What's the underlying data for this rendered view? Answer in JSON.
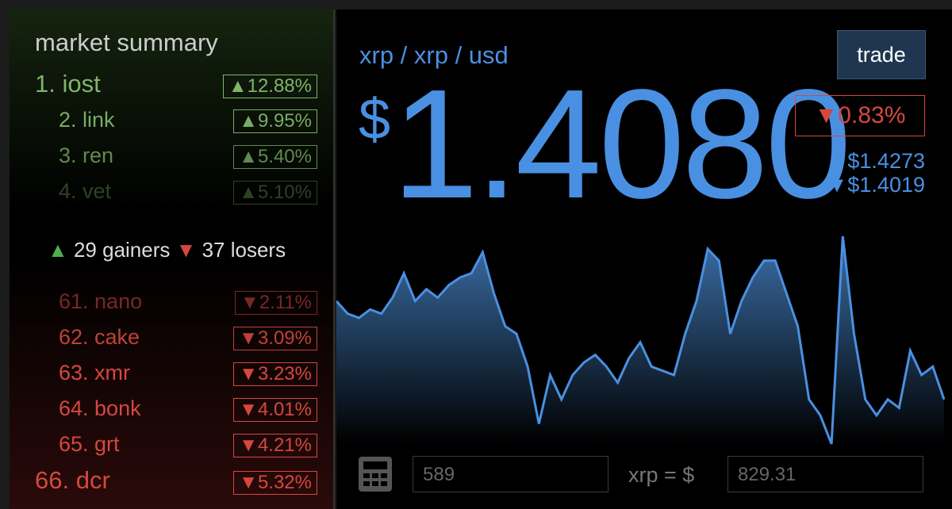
{
  "sidebar": {
    "title": "market summary",
    "gainers": [
      {
        "rank": "1. iost",
        "change": "▲12.88%"
      },
      {
        "rank": "2. link",
        "change": "▲9.95%"
      },
      {
        "rank": "3. ren",
        "change": "▲5.40%"
      },
      {
        "rank": "4. vet",
        "change": "▲5.10%"
      }
    ],
    "summary": {
      "gainers": "29 gainers",
      "losers": "37 losers"
    },
    "losers": [
      {
        "rank": "61. nano",
        "change": "▼2.11%"
      },
      {
        "rank": "62. cake",
        "change": "▼3.09%"
      },
      {
        "rank": "63. xmr",
        "change": "▼3.23%"
      },
      {
        "rank": "64. bonk",
        "change": "▼4.01%"
      },
      {
        "rank": "65. grt",
        "change": "▼4.21%"
      },
      {
        "rank": "66. dcr",
        "change": "▼5.32%"
      }
    ]
  },
  "ticker": {
    "pair": "xrp / xrp / usd",
    "trade": "trade",
    "currency": "$",
    "price": "1.4080",
    "change": "▼0.83%",
    "high": "▲$1.4273",
    "low": "▼$1.4019"
  },
  "chart_data": {
    "type": "area",
    "color": "#4a90e2",
    "values": [
      1.4194,
      1.4179,
      1.4174,
      1.4184,
      1.4179,
      1.4198,
      1.4227,
      1.4194,
      1.4208,
      1.4198,
      1.4213,
      1.4222,
      1.4227,
      1.4252,
      1.4203,
      1.4164,
      1.4155,
      1.4116,
      1.4048,
      1.4106,
      1.4077,
      1.4106,
      1.4121,
      1.413,
      1.4116,
      1.4097,
      1.4126,
      1.4145,
      1.4116,
      1.4111,
      1.4106,
      1.4155,
      1.4194,
      1.4256,
      1.4242,
      1.4155,
      1.4194,
      1.4222,
      1.4242,
      1.4242,
      1.4203,
      1.4164,
      1.4077,
      1.4058,
      1.4024,
      1.4271,
      1.4155,
      1.4077,
      1.4058,
      1.4077,
      1.4067,
      1.4135,
      1.4106,
      1.4116,
      1.4077
    ]
  },
  "converter": {
    "amount": "589",
    "label": "xrp = $",
    "result": "829.31"
  }
}
